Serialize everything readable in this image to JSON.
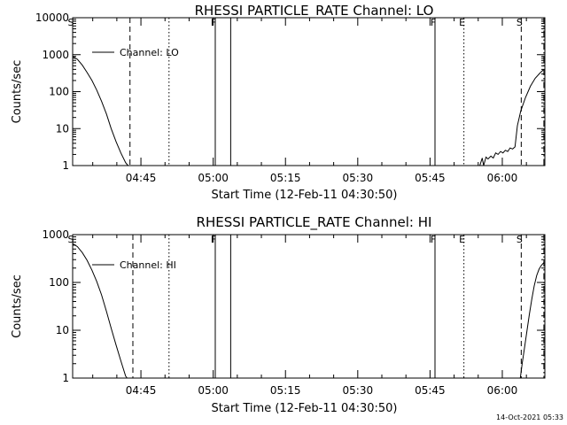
{
  "chart_data": [
    {
      "type": "line",
      "title": "RHESSI PARTICLE_RATE Channel: LO",
      "xlabel": "Start Time (12-Feb-11 04:30:50)",
      "ylabel": "Counts/sec",
      "yscale": "log",
      "ylim": [
        1,
        10000
      ],
      "xlim_minutes": [
        0,
        98
      ],
      "x_ticks": [
        {
          "label": "04:45",
          "minute": 14.17
        },
        {
          "label": "05:00",
          "minute": 29.17
        },
        {
          "label": "05:15",
          "minute": 44.17
        },
        {
          "label": "05:30",
          "minute": 59.17
        },
        {
          "label": "05:45",
          "minute": 74.17
        },
        {
          "label": "06:00",
          "minute": 89.17
        }
      ],
      "y_ticks": [
        {
          "label": "1",
          "value": 1
        },
        {
          "label": "10",
          "value": 10
        },
        {
          "label": "100",
          "value": 100
        },
        {
          "label": "1000",
          "value": 1000
        },
        {
          "label": "10000",
          "value": 10000
        }
      ],
      "legend": {
        "label": "Channel: LO",
        "position": "top-left"
      },
      "series": [
        {
          "name": "Channel: LO",
          "x": [
            0,
            1,
            2,
            3,
            4,
            5,
            6,
            7,
            8,
            9,
            10,
            11,
            11.5
          ],
          "y": [
            900,
            750,
            520,
            330,
            200,
            110,
            55,
            25,
            10,
            4.5,
            2.2,
            1.2,
            1
          ]
        },
        {
          "name": "Channel: LO",
          "x": [
            84.5,
            85,
            85.3,
            85.8,
            86.2,
            86.8,
            87.3,
            87.8,
            88.3,
            88.8,
            89.3,
            89.8,
            90.3,
            90.8,
            91.3,
            91.8,
            92.3,
            93,
            94,
            95,
            96,
            97,
            97.8
          ],
          "y": [
            1,
            1.6,
            1,
            1.7,
            1.5,
            1.8,
            1.6,
            2.2,
            2.0,
            2.4,
            2.2,
            2.6,
            2.4,
            3.0,
            2.8,
            3.2,
            12,
            30,
            70,
            140,
            230,
            320,
            400
          ]
        }
      ],
      "markers": [
        {
          "label": "S",
          "minute": 0,
          "style": "solid"
        },
        {
          "label": "",
          "minute": 11.9,
          "style": "dashed"
        },
        {
          "label": "",
          "minute": 20,
          "style": "dotted"
        },
        {
          "label": "F",
          "minute": 29.6,
          "style": "solid"
        },
        {
          "label": "",
          "minute": 32.8,
          "style": "solid"
        },
        {
          "label": "F",
          "minute": 75.2,
          "style": "solid"
        },
        {
          "label": "E",
          "minute": 81.2,
          "style": "dotted"
        },
        {
          "label": "S",
          "minute": 93.1,
          "style": "dashed"
        },
        {
          "label": "",
          "minute": 97.8,
          "style": "dashdot"
        }
      ]
    },
    {
      "type": "line",
      "title": "RHESSI PARTICLE_RATE Channel: HI",
      "xlabel": "Start Time (12-Feb-11 04:30:50)",
      "ylabel": "Counts/sec",
      "yscale": "log",
      "ylim": [
        1,
        1000
      ],
      "xlim_minutes": [
        0,
        98
      ],
      "x_ticks": [
        {
          "label": "04:45",
          "minute": 14.17
        },
        {
          "label": "05:00",
          "minute": 29.17
        },
        {
          "label": "05:15",
          "minute": 44.17
        },
        {
          "label": "05:30",
          "minute": 59.17
        },
        {
          "label": "05:45",
          "minute": 74.17
        },
        {
          "label": "06:00",
          "minute": 89.17
        }
      ],
      "y_ticks": [
        {
          "label": "1",
          "value": 1
        },
        {
          "label": "10",
          "value": 10
        },
        {
          "label": "100",
          "value": 100
        },
        {
          "label": "1000",
          "value": 1000
        }
      ],
      "legend": {
        "label": "Channel: HI",
        "position": "top-left"
      },
      "series": [
        {
          "name": "Channel: HI",
          "x": [
            0,
            1,
            2,
            3,
            4,
            5,
            6,
            7,
            8,
            9,
            10,
            11,
            11.3
          ],
          "y": [
            650,
            560,
            420,
            290,
            180,
            105,
            55,
            25,
            11,
            5,
            2.3,
            1.1,
            1
          ]
        },
        {
          "name": "Channel: HI",
          "x": [
            92.9,
            93.3,
            93.8,
            94.3,
            94.8,
            95.3,
            95.8,
            96.3,
            96.8,
            97.3,
            97.8
          ],
          "y": [
            1,
            2,
            4.5,
            10,
            22,
            45,
            85,
            140,
            190,
            230,
            260
          ]
        }
      ],
      "markers": [
        {
          "label": "S",
          "minute": 0,
          "style": "solid"
        },
        {
          "label": "",
          "minute": 12.5,
          "style": "dashed"
        },
        {
          "label": "",
          "minute": 20,
          "style": "dotted"
        },
        {
          "label": "F",
          "minute": 29.6,
          "style": "solid"
        },
        {
          "label": "",
          "minute": 32.8,
          "style": "solid"
        },
        {
          "label": "F",
          "minute": 75.2,
          "style": "solid"
        },
        {
          "label": "E",
          "minute": 81.2,
          "style": "dotted"
        },
        {
          "label": "S",
          "minute": 93.1,
          "style": "dashed"
        },
        {
          "label": "",
          "minute": 97.8,
          "style": "dashdot"
        }
      ]
    }
  ],
  "footer": {
    "timestamp": "14-Oct-2021 05:33"
  }
}
